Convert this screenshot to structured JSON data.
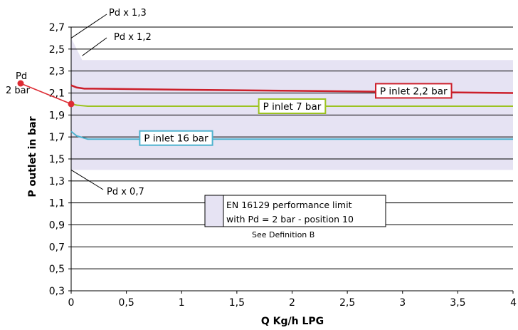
{
  "chart_data": {
    "type": "line",
    "title": "",
    "xlabel": "Q Kg/h LPG",
    "ylabel": "P outlet in bar",
    "xlim": [
      0,
      4
    ],
    "ylim": [
      0.3,
      2.7
    ],
    "x_ticks": [
      0,
      0.5,
      1,
      1.5,
      2,
      2.5,
      3,
      3.5,
      4
    ],
    "x_tick_labels": [
      "0",
      "0,5",
      "1",
      "1,5",
      "2",
      "2,5",
      "3",
      "3,5",
      "4"
    ],
    "y_ticks": [
      0.3,
      0.5,
      0.7,
      0.9,
      1.1,
      1.3,
      1.5,
      1.7,
      1.9,
      2.1,
      2.3,
      2.5,
      2.7
    ],
    "y_tick_labels": [
      "0,3",
      "0,5",
      "0,7",
      "0,9",
      "1,1",
      "1,3",
      "1,5",
      "1,7",
      "1,9",
      "2,1",
      "2,3",
      "2,5",
      "2,7"
    ],
    "grid": "horizontal",
    "band": {
      "color": "#e6e3f3",
      "low": 1.4,
      "high": 2.4,
      "spike": [
        [
          0,
          2.6
        ],
        [
          0.1,
          2.4
        ]
      ],
      "legend_line1": "EN 16129 performance limit",
      "legend_line2": "with Pd = 2 bar - position 10",
      "legend_note": "See Definition B"
    },
    "series": [
      {
        "name": "P inlet 2,2 bar",
        "color": "#cc1f2a",
        "x": [
          0,
          0.05,
          0.12,
          0.2,
          1,
          2,
          3,
          4
        ],
        "y": [
          2.17,
          2.15,
          2.14,
          2.14,
          2.13,
          2.12,
          2.11,
          2.1
        ],
        "label_at": [
          3.1,
          2.12
        ]
      },
      {
        "name": "P inlet 7 bar",
        "color": "#9cc321",
        "x": [
          0,
          0.05,
          0.15,
          0.3,
          1,
          2,
          3,
          4
        ],
        "y": [
          2.0,
          1.99,
          1.98,
          1.98,
          1.98,
          1.98,
          1.98,
          1.98
        ],
        "label_at": [
          2.0,
          1.98
        ]
      },
      {
        "name": "P inlet 16 bar",
        "color": "#4eb3cf",
        "x": [
          0,
          0.05,
          0.15,
          1,
          2,
          3,
          4
        ],
        "y": [
          1.75,
          1.71,
          1.68,
          1.68,
          1.68,
          1.68,
          1.68
        ],
        "label_at": [
          0.95,
          1.69
        ]
      }
    ],
    "annotations": [
      {
        "text": "Pd x 1,3",
        "value": 2.6
      },
      {
        "text": "Pd x 1,2",
        "value": 2.4
      },
      {
        "text": "Pd x 0,7",
        "value": 1.4
      }
    ],
    "pd_marker": {
      "line1": "Pd",
      "line2": "2 bar",
      "value": 2.0,
      "color": "#dd2b33"
    }
  }
}
